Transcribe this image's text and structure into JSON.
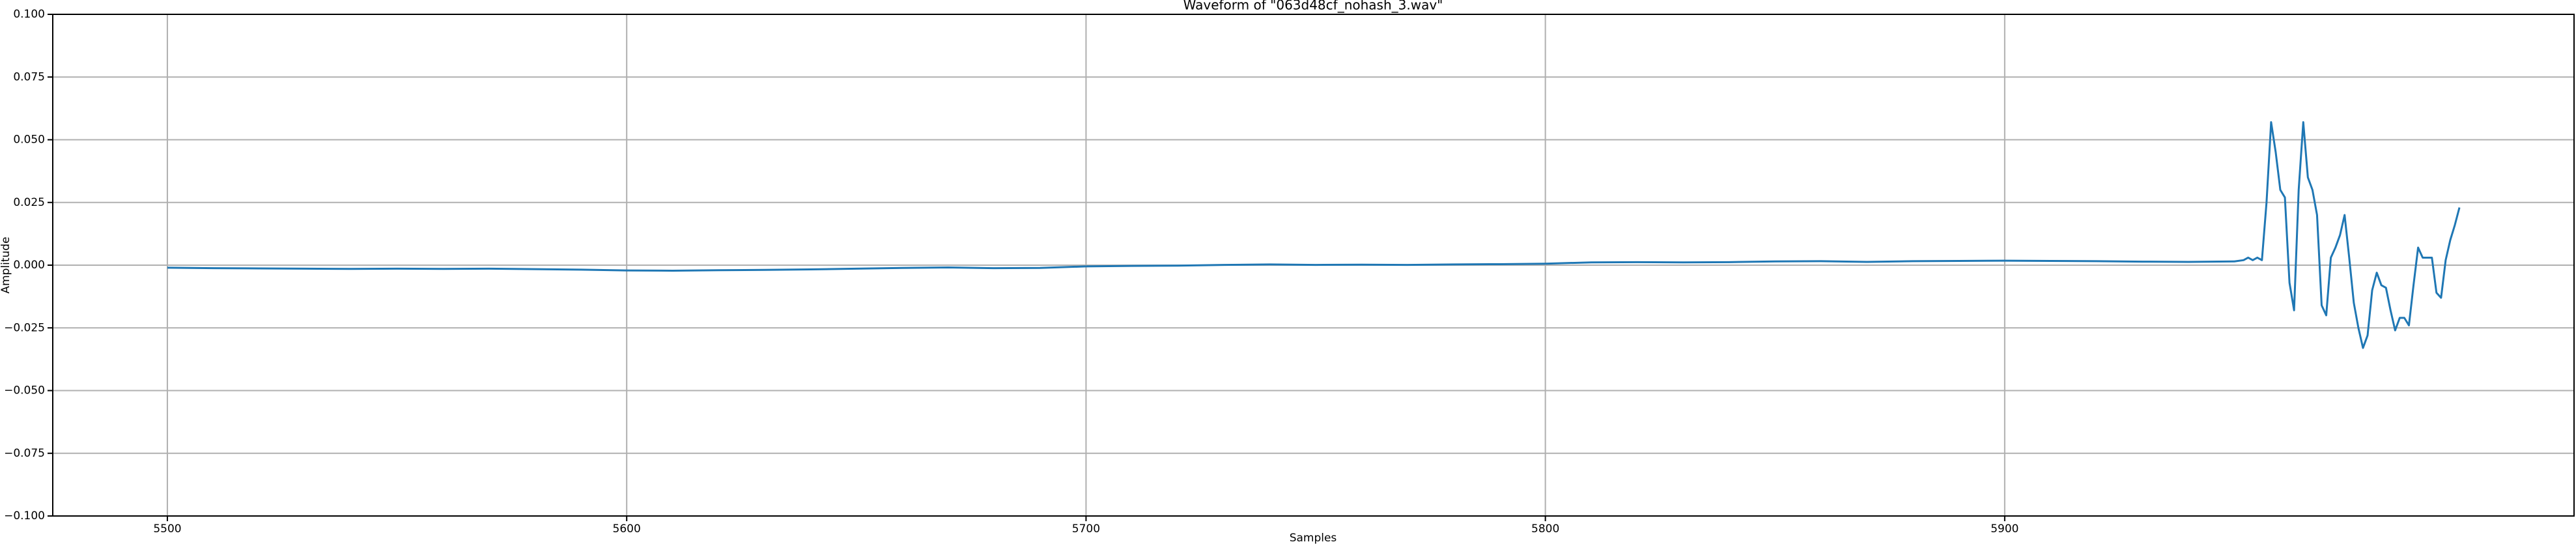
{
  "chart_data": {
    "type": "line",
    "title": "Waveform of \"063d48cf_nohash_3.wav\"",
    "x_label": "Samples",
    "y_label": "Amplitude",
    "color": "#1f77b4",
    "grid": true,
    "xlim": [
      5475.05,
      6023.95
    ],
    "xticks": [
      5500,
      5600,
      5700,
      5800,
      5900
    ],
    "ylim": [
      -0.1,
      0.1
    ],
    "yticks": [
      {
        "value": -0.1,
        "label": "−0.100"
      },
      {
        "value": -0.075,
        "label": "−0.075"
      },
      {
        "value": -0.05,
        "label": "−0.050"
      },
      {
        "value": -0.025,
        "label": "−0.025"
      },
      {
        "value": 0,
        "label": "0.000"
      },
      {
        "value": 0.025,
        "label": "0.025"
      },
      {
        "value": 0.05,
        "label": "0.050"
      },
      {
        "value": 0.075,
        "label": "0.075"
      },
      {
        "value": 0.1,
        "label": "0.100"
      }
    ],
    "x": [
      5500,
      5510,
      5520,
      5530,
      5540,
      5550,
      5560,
      5570,
      5580,
      5590,
      5600,
      5610,
      5620,
      5630,
      5640,
      5650,
      5660,
      5670,
      5680,
      5690,
      5700,
      5710,
      5720,
      5730,
      5740,
      5750,
      5760,
      5770,
      5780,
      5790,
      5800,
      5810,
      5820,
      5830,
      5840,
      5850,
      5860,
      5870,
      5880,
      5890,
      5900,
      5910,
      5920,
      5930,
      5940,
      5950,
      5952,
      5953,
      5954,
      5955,
      5956,
      5957,
      5958,
      5959,
      5960,
      5961,
      5962,
      5963,
      5964,
      5965,
      5966,
      5967,
      5968,
      5969,
      5970,
      5971,
      5972,
      5973,
      5974,
      5975,
      5976,
      5977,
      5978,
      5979,
      5980,
      5981,
      5982,
      5983,
      5984,
      5985,
      5986,
      5987,
      5988,
      5989,
      5990,
      5991,
      5992,
      5993,
      5994,
      5995,
      5996,
      5997,
      5998,
      5999
    ],
    "values": [
      -0.001,
      -0.0012,
      -0.0013,
      -0.0014,
      -0.0015,
      -0.0014,
      -0.0015,
      -0.0014,
      -0.0016,
      -0.0018,
      -0.0021,
      -0.0022,
      -0.002,
      -0.0019,
      -0.0017,
      -0.0014,
      -0.0011,
      -0.0009,
      -0.0012,
      -0.0011,
      -0.0005,
      -0.0003,
      -0.0002,
      0.0001,
      0.0003,
      0.0001,
      0.0002,
      0.0001,
      0.0003,
      0.0004,
      0.0006,
      0.0011,
      0.0012,
      0.0011,
      0.0012,
      0.0015,
      0.0016,
      0.0013,
      0.0016,
      0.0017,
      0.0018,
      0.0017,
      0.0016,
      0.0014,
      0.0013,
      0.0015,
      0.002,
      0.003,
      0.002,
      0.003,
      0.002,
      0.025,
      0.057,
      0.045,
      0.03,
      0.027,
      -0.007,
      -0.018,
      0.03,
      0.057,
      0.035,
      0.03,
      0.02,
      -0.016,
      -0.02,
      0.003,
      0.007,
      0.012,
      0.02,
      0.003,
      -0.015,
      -0.025,
      -0.033,
      -0.028,
      -0.01,
      -0.003,
      -0.008,
      -0.009,
      -0.018,
      -0.026,
      -0.021,
      -0.021,
      -0.024,
      -0.008,
      0.007,
      0.003,
      0.003,
      0.003,
      -0.011,
      -0.013,
      0.002,
      0.01,
      0.016,
      0.023
    ]
  }
}
